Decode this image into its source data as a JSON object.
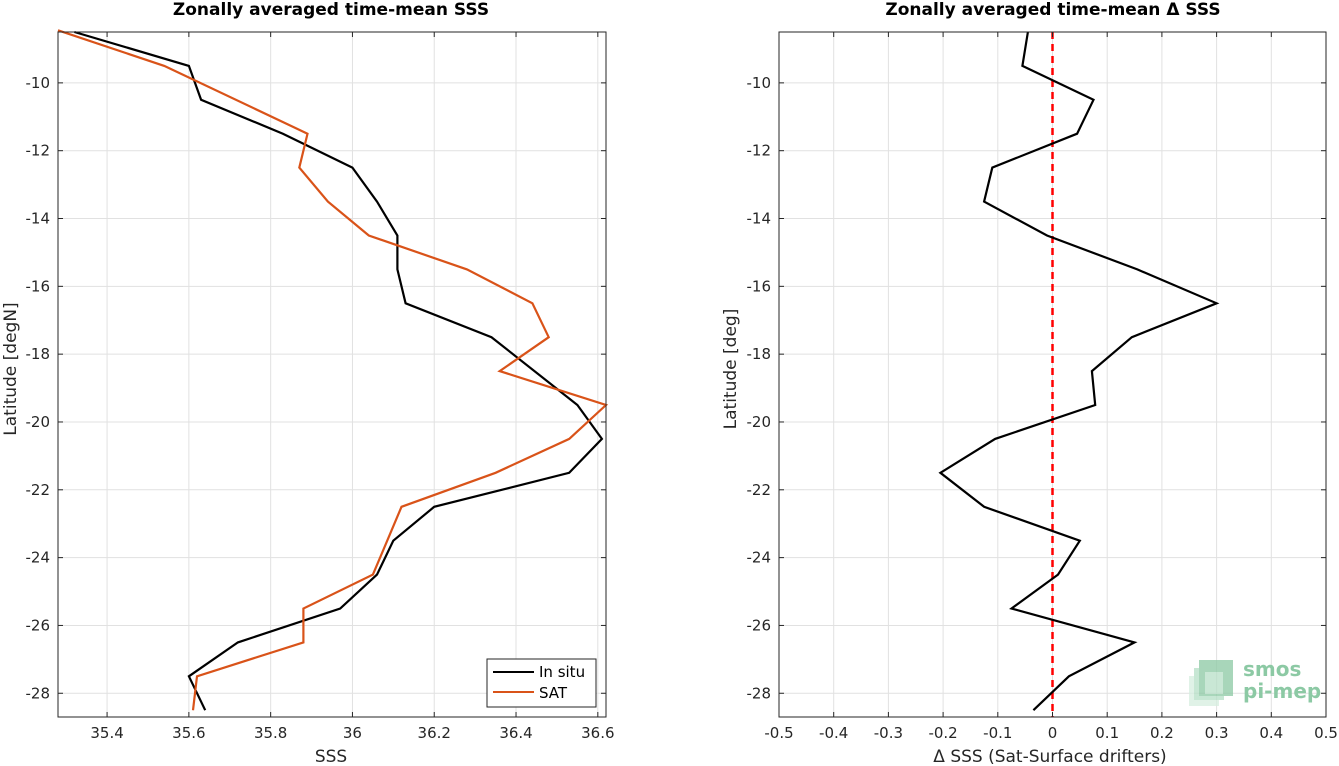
{
  "chart_data": [
    {
      "type": "line",
      "title": "Zonally averaged time-mean SSS",
      "xlabel": "SSS",
      "ylabel": "Latitude [degN]",
      "xlim": [
        35.28,
        36.62
      ],
      "ylim": [
        -28.7,
        -8.5
      ],
      "xticks": [
        35.4,
        35.6,
        35.8,
        36.0,
        36.2,
        36.4,
        36.6
      ],
      "xtick_labels": [
        "35.4",
        "35.6",
        "35.8",
        "36",
        "36.2",
        "36.4",
        "36.6"
      ],
      "yticks": [
        -10,
        -12,
        -14,
        -16,
        -18,
        -20,
        -22,
        -24,
        -26,
        -28
      ],
      "ytick_labels": [
        "-10",
        "-12",
        "-14",
        "-16",
        "-18",
        "-20",
        "-22",
        "-24",
        "-26",
        "-28"
      ],
      "grid": true,
      "legend_position": "bottom-right",
      "series": [
        {
          "name": "In situ",
          "color": "#000000",
          "x": [
            35.32,
            35.6,
            35.63,
            35.83,
            36.0,
            36.06,
            36.11,
            36.11,
            36.13,
            36.34,
            36.55,
            36.61,
            36.53,
            36.2,
            36.1,
            36.06,
            35.97,
            35.72,
            35.6,
            35.64
          ],
          "y": [
            -8.5,
            -9.5,
            -10.5,
            -11.5,
            -12.5,
            -13.5,
            -14.5,
            -15.5,
            -16.5,
            -17.5,
            -19.5,
            -20.5,
            -21.5,
            -22.5,
            -23.5,
            -24.5,
            -25.5,
            -26.5,
            -27.5,
            -28.5
          ]
        },
        {
          "name": "SAT",
          "color": "#d95319",
          "x": [
            35.28,
            35.54,
            35.89,
            35.87,
            35.94,
            36.04,
            36.28,
            36.44,
            36.48,
            36.36,
            36.62,
            36.53,
            36.35,
            36.12,
            36.05,
            35.88,
            35.88,
            35.62,
            35.61
          ],
          "y": [
            -8.45,
            -9.5,
            -11.5,
            -12.5,
            -13.5,
            -14.5,
            -15.5,
            -16.5,
            -17.5,
            -18.5,
            -19.5,
            -20.5,
            -21.5,
            -22.5,
            -24.5,
            -25.5,
            -26.5,
            -27.5,
            -28.5
          ]
        }
      ]
    },
    {
      "type": "line",
      "title": "Zonally averaged time-mean Δ SSS",
      "xlabel": "Δ SSS (Sat-Surface drifters)",
      "ylabel": "Latitude [deg]",
      "xlim": [
        -0.5,
        0.5
      ],
      "ylim": [
        -28.7,
        -8.5
      ],
      "xticks": [
        -0.5,
        -0.4,
        -0.3,
        -0.2,
        -0.1,
        0,
        0.1,
        0.2,
        0.3,
        0.4,
        0.5
      ],
      "xtick_labels": [
        "-0.5",
        "-0.4",
        "-0.3",
        "-0.2",
        "-0.1",
        "0",
        "0.1",
        "0.2",
        "0.3",
        "0.4",
        "0.5"
      ],
      "yticks": [
        -10,
        -12,
        -14,
        -16,
        -18,
        -20,
        -22,
        -24,
        -26,
        -28
      ],
      "ytick_labels": [
        "-10",
        "-12",
        "-14",
        "-16",
        "-18",
        "-20",
        "-22",
        "-24",
        "-26",
        "-28"
      ],
      "grid": true,
      "reference_line": {
        "x": 0,
        "color": "#ff0000",
        "style": "dashed"
      },
      "series": [
        {
          "color": "#000000",
          "x": [
            -0.045,
            -0.055,
            0.075,
            0.045,
            -0.11,
            -0.125,
            -0.01,
            0.155,
            0.3,
            0.145,
            0.072,
            0.078,
            -0.105,
            -0.205,
            -0.125,
            0.05,
            0.01,
            -0.075,
            0.15,
            0.03,
            -0.035
          ],
          "y": [
            -8.5,
            -9.5,
            -10.5,
            -11.5,
            -12.5,
            -13.5,
            -14.5,
            -15.5,
            -16.5,
            -17.5,
            -18.5,
            -19.5,
            -20.5,
            -21.5,
            -22.5,
            -23.5,
            -24.5,
            -25.5,
            -26.5,
            -27.5,
            -28.5
          ]
        }
      ]
    }
  ],
  "logo": {
    "line1": "smos",
    "line2": "pi-mep",
    "color": "#8cc9a4"
  }
}
